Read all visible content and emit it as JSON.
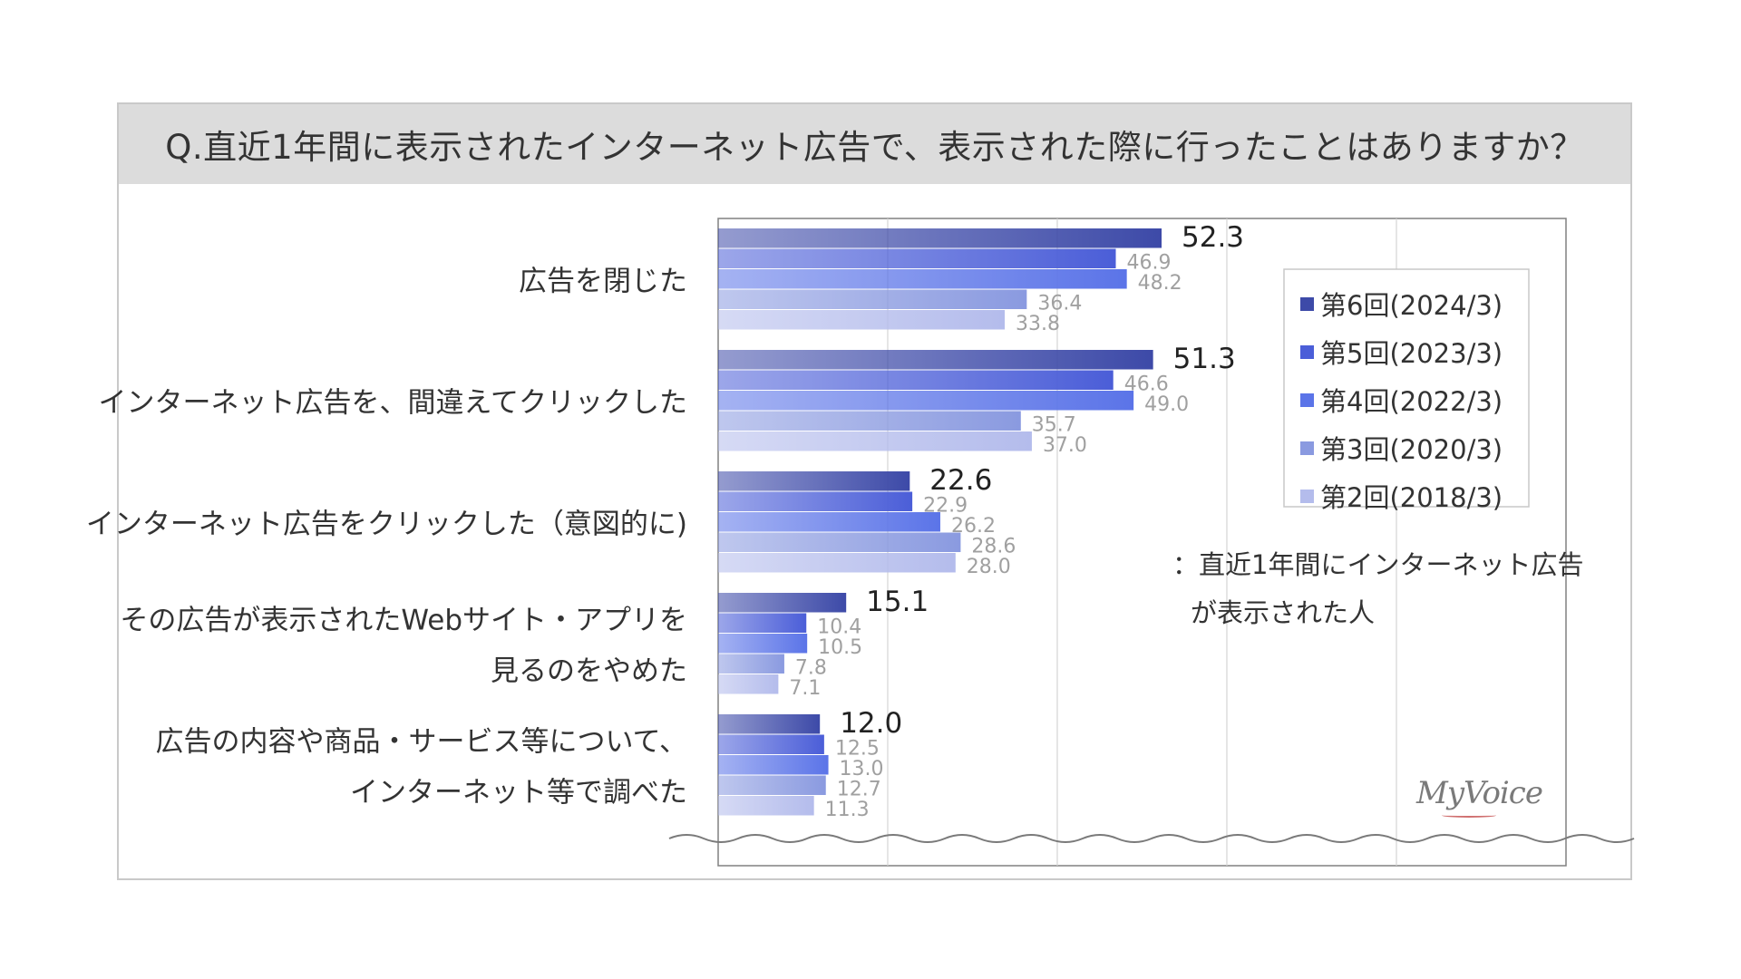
{
  "chart_data": {
    "type": "bar",
    "orientation": "horizontal",
    "title": "Q.直近1年間に表示されたインターネット広告で、表示された際に行ったことはありますか？",
    "categories": [
      [
        "広告を閉じた"
      ],
      [
        "インターネット広告を、間違えてクリックした"
      ],
      [
        "インターネット広告をクリックした（意図的に)"
      ],
      [
        "その広告が表示されたWebサイト・アプリを",
        "見るのをやめた"
      ],
      [
        "広告の内容や商品・サービス等について、",
        "インターネット等で調べた"
      ]
    ],
    "series": [
      {
        "name": "第6回(2024/3)",
        "values": [
          52.3,
          51.3,
          22.6,
          15.1,
          12.0
        ],
        "color": "#3d4aa8"
      },
      {
        "name": "第5回(2023/3)",
        "values": [
          46.9,
          46.6,
          22.9,
          10.4,
          12.5
        ],
        "color": "#4b5ed8"
      },
      {
        "name": "第4回(2022/3)",
        "values": [
          48.2,
          49.0,
          26.2,
          10.5,
          13.0
        ],
        "color": "#5b74e8"
      },
      {
        "name": "第3回(2020/3)",
        "values": [
          36.4,
          35.7,
          28.6,
          7.8,
          12.7
        ],
        "color": "#8a9ae0"
      },
      {
        "name": "第2回(2018/3)",
        "values": [
          33.8,
          37.0,
          28.0,
          7.1,
          11.3
        ],
        "color": "#b4bcec"
      }
    ],
    "value_labels": [
      [
        "52.3",
        "51.3",
        "22.6",
        "15.1",
        "12.0"
      ],
      [
        "46.9",
        "46.6",
        "22.9",
        "10.4",
        "12.5"
      ],
      [
        "48.2",
        "49.0",
        "26.2",
        "10.5",
        "13.0"
      ],
      [
        "36.4",
        "35.7",
        "28.6",
        "7.8",
        "12.7"
      ],
      [
        "33.8",
        "37.0",
        "28.0",
        "7.1",
        "11.3"
      ]
    ],
    "xlim": [
      0,
      100
    ],
    "grid": true,
    "legend_position": "right",
    "note": [
      "：直近1年間にインターネット広告",
      "が表示された人"
    ]
  },
  "logo_text": "MyVoice"
}
